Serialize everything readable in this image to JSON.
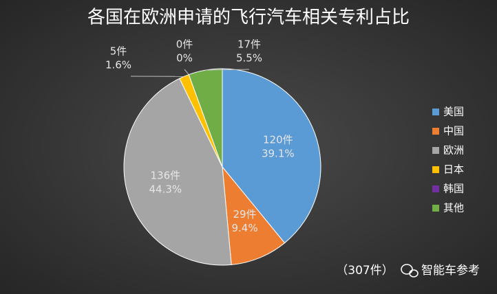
{
  "chart_data": {
    "type": "pie",
    "title": "各国在欧洲申请的飞行汽车相关专利占比",
    "categories": [
      "美国",
      "中国",
      "欧洲",
      "日本",
      "韩国",
      "其他"
    ],
    "values": [
      120,
      29,
      136,
      5,
      0,
      17
    ],
    "value_labels": [
      "120件",
      "29件",
      "136件",
      "5件",
      "0件",
      "17件"
    ],
    "percents": [
      39.1,
      9.4,
      44.3,
      1.6,
      0,
      5.5
    ],
    "percent_labels": [
      "39.1%",
      "9.4%",
      "44.3%",
      "1.6%",
      "0%",
      "5.5%"
    ],
    "colors": [
      "#5b9bd5",
      "#ed7d31",
      "#a5a5a5",
      "#ffc000",
      "#7030a0",
      "#70ad47"
    ],
    "legend": "right",
    "total_note": "（307件）",
    "source": "智能车参考"
  }
}
